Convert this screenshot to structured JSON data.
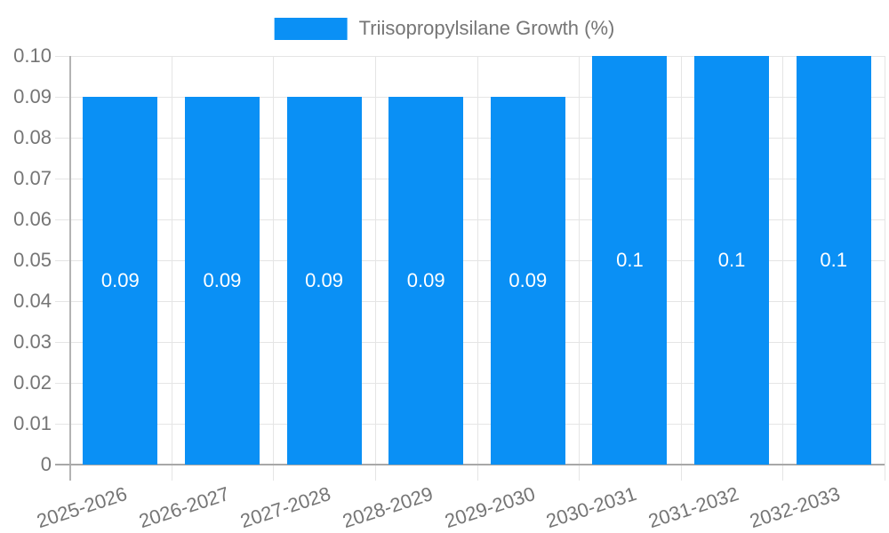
{
  "legend": {
    "label": "Triisopropylsilane Growth (%)"
  },
  "chart_data": {
    "type": "bar",
    "title": "",
    "xlabel": "",
    "ylabel": "",
    "categories": [
      "2025-2026",
      "2026-2027",
      "2027-2028",
      "2028-2029",
      "2029-2030",
      "2030-2031",
      "2031-2032",
      "2032-2033"
    ],
    "series": [
      {
        "name": "Triisopropylsilane Growth (%)",
        "values": [
          0.09,
          0.09,
          0.09,
          0.09,
          0.09,
          0.1,
          0.1,
          0.1
        ]
      }
    ],
    "value_labels": [
      "0.09",
      "0.09",
      "0.09",
      "0.09",
      "0.09",
      "0.1",
      "0.1",
      "0.1"
    ],
    "y_ticks": [
      "0",
      "0.01",
      "0.02",
      "0.03",
      "0.04",
      "0.05",
      "0.06",
      "0.07",
      "0.08",
      "0.09",
      "0.10"
    ],
    "ylim": [
      0,
      0.1
    ],
    "grid": true,
    "legend_position": "top",
    "colors": {
      "bar": "#0a90f5",
      "grid": "#e5e5e5",
      "axis": "#b3b3b3",
      "zero_line": "#a8a8a8",
      "text": "#757575",
      "bar_label": "#ffffff"
    }
  }
}
